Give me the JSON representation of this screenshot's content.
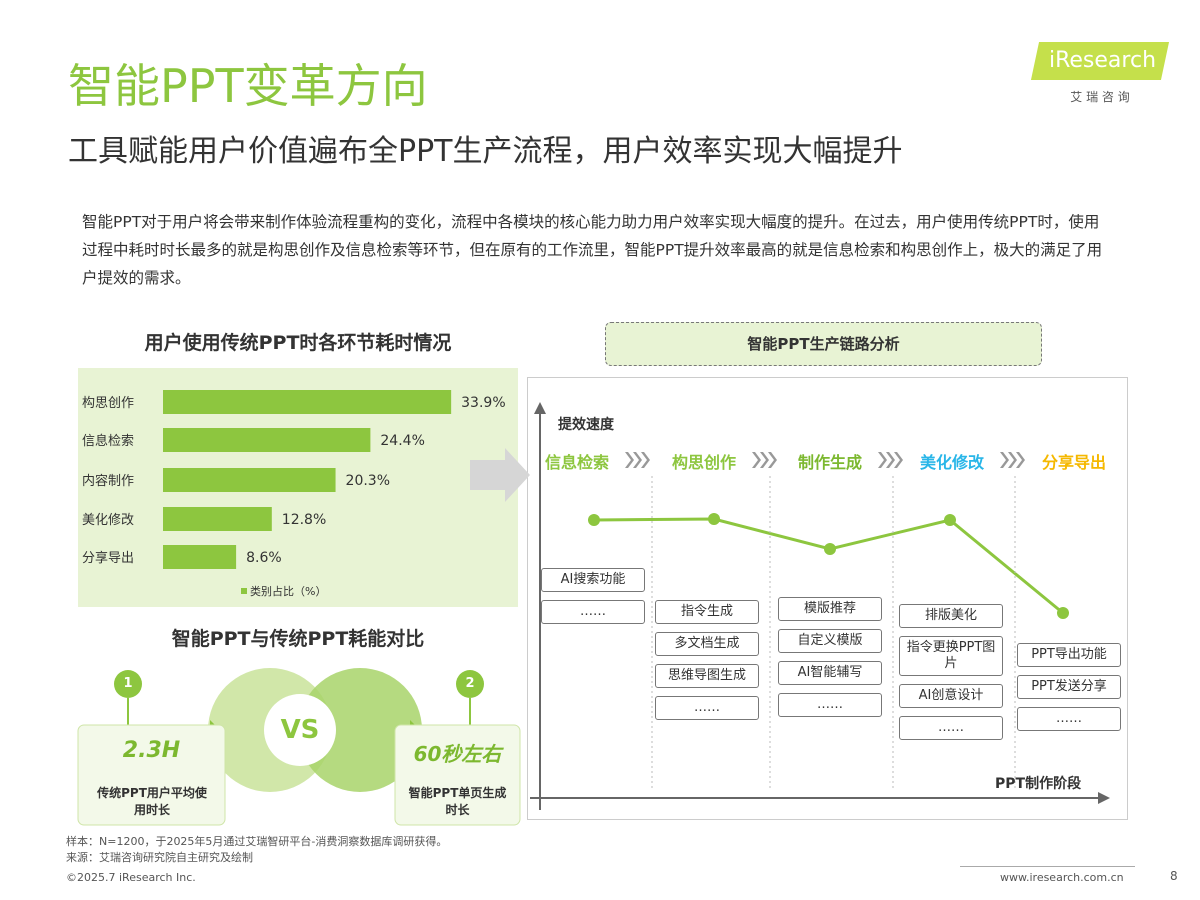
{
  "header": {
    "title": "智能PPT变革方向",
    "subtitle": "工具赋能用户价值遍布全PPT生产流程，用户效率实现大幅提升",
    "logo": "iResearch",
    "logo_sub": "艾 瑞 咨 询"
  },
  "intro": "智能PPT对于用户将会带来制作体验流程重构的变化，流程中各模块的核心能力助力用户效率实现大幅度的提升。在过去，用户使用传统PPT时，使用过程中耗时时长最多的就是构思创作及信息检索等环节，但在原有的工作流里，智能PPT提升效率最高的就是信息检索和构思创作上，极大的满足了用户提效的需求。",
  "chart_data": {
    "type": "bar",
    "title": "用户使用传统PPT时各环节耗时情况",
    "categories": [
      "构思创作",
      "信息检索",
      "内容制作",
      "美化修改",
      "分享导出"
    ],
    "series": [
      {
        "name": "类别占比（%）",
        "color": "#8dc63f",
        "values": [
          33.9,
          24.4,
          20.3,
          12.8,
          8.6
        ]
      }
    ],
    "value_labels": [
      "33.9%",
      "24.4%",
      "20.3%",
      "12.8%",
      "8.6%"
    ],
    "xlim": [
      0,
      40
    ]
  },
  "comparison": {
    "title": "智能PPT与传统PPT耗能对比",
    "vs": "VS",
    "left": {
      "badge": "1",
      "value": "2.3H",
      "label": "传统PPT用户平均使用时长"
    },
    "right": {
      "badge": "2",
      "value": "60秒左右",
      "label": "智能PPT单页生成时长"
    }
  },
  "diagram": {
    "title": "智能PPT生产链路分析",
    "y_label": "提效速度",
    "x_label": "PPT制作阶段",
    "stages": [
      {
        "name": "信息检索",
        "color": "#8dc63f",
        "features": [
          "AI搜索功能",
          "……"
        ]
      },
      {
        "name": "构思创作",
        "color": "#8dc63f",
        "features": [
          "指令生成",
          "多文档生成",
          "思维导图生成",
          "……"
        ]
      },
      {
        "name": "制作生成",
        "color": "#7cb82f",
        "features": [
          "模版推荐",
          "自定义模版",
          "AI智能辅写",
          "……"
        ]
      },
      {
        "name": "美化修改",
        "color": "#29b6e8",
        "features": [
          "排版美化",
          "指令更换PPT图片",
          "AI创意设计",
          "……"
        ]
      },
      {
        "name": "分享导出",
        "color": "#f5b800",
        "features": [
          "PPT导出功能",
          "PPT发送分享",
          "……"
        ]
      }
    ]
  },
  "footer": {
    "notes": [
      "样本：N=1200，于2025年5月通过艾瑞智研平台-消费洞察数据库调研获得。",
      "来源：艾瑞咨询研究院自主研究及绘制"
    ],
    "copyright": "©2025.7 iResearch Inc.",
    "url": "www.iresearch.com.cn",
    "page": "8"
  }
}
